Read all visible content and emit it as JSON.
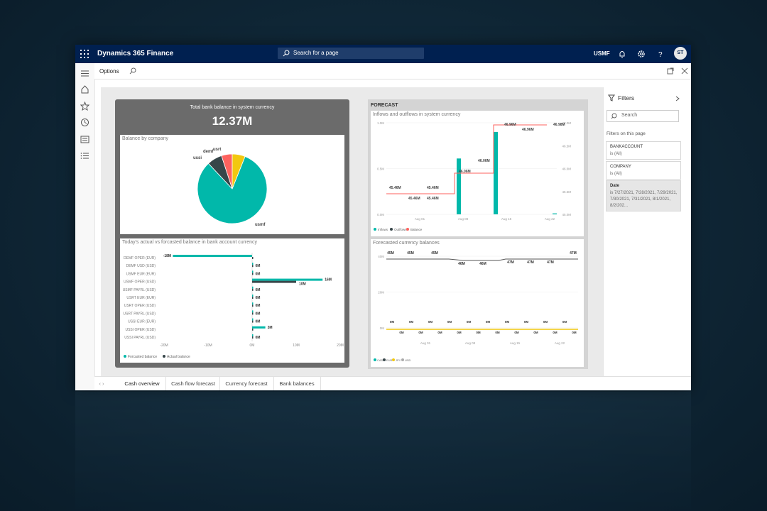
{
  "topbar": {
    "app_title": "Dynamics 365 Finance",
    "search_placeholder": "Search for a page",
    "company": "USMF",
    "user_initials": "ST"
  },
  "command": {
    "options_label": "Options"
  },
  "kpi": {
    "title": "Total bank balance in system currency",
    "value": "12.37M"
  },
  "balance_by_company": {
    "title": "Balance by company",
    "labels": [
      "demf",
      "usrt",
      "ussi",
      "usmf"
    ]
  },
  "bank_account_chart": {
    "title": "Today's actual vs forcasted balance in bank account currency",
    "legend": [
      "Forcasted balance",
      "Actual balance"
    ]
  },
  "forecast": {
    "title": "FORECAST",
    "inflows_title": "Inflows and outflows in system currency",
    "inflows_legend": [
      "Inflows",
      "Outflows",
      "Balance"
    ],
    "currency_title": "Forecasted currency balances",
    "currency_legend": [
      "CAD",
      "EUR",
      "JPY",
      "USD"
    ]
  },
  "filters": {
    "title": "Filters",
    "search_placeholder": "Search",
    "subtitle": "Filters on this page",
    "items": [
      {
        "name": "BANKACCOUNT",
        "value": "is (All)"
      },
      {
        "name": "COMPANY",
        "value": "is (All)"
      },
      {
        "name": "Date",
        "value": "is 7/27/2021, 7/28/2021, 7/29/2021, 7/30/2021, 7/31/2021, 8/1/2021, 8/2/202..."
      }
    ]
  },
  "tabs": [
    {
      "label": "Cash overview"
    },
    {
      "label": "Cash flow forecast"
    },
    {
      "label": "Currency forecast"
    },
    {
      "label": "Bank balances"
    }
  ],
  "chart_data": [
    {
      "type": "pie",
      "title": "Balance by company",
      "categories": [
        "usmf",
        "ussi",
        "demf",
        "usrt"
      ],
      "values": [
        82,
        7,
        5,
        6
      ],
      "colors": [
        "#01b8aa",
        "#374649",
        "#fd625e",
        "#f2c80f"
      ]
    },
    {
      "type": "bar",
      "title": "Today's actual vs forcasted balance in bank account currency",
      "categories": [
        "DEMF OPER (EUR)",
        "DEMF USD (USD)",
        "USMF EUR (EUR)",
        "USMF OPER (USD)",
        "USMF PAYRL (USD)",
        "USRT EUR (EUR)",
        "USRT OPER (USD)",
        "USRT PAYRL (USD)",
        "USSI EUR (EUR)",
        "USSI OPER (USD)",
        "USSI PAYRL (USD)"
      ],
      "series": [
        {
          "name": "Forcasted balance",
          "values": [
            -18,
            0,
            0,
            16,
            0,
            0,
            0,
            0,
            0,
            3,
            0
          ]
        },
        {
          "name": "Actual balance",
          "values": [
            0,
            0,
            0,
            10,
            0,
            0,
            0,
            0,
            0,
            0,
            0
          ]
        }
      ],
      "data_labels": [
        "-18M",
        "0M",
        "0M",
        "16M",
        "10M",
        "0M",
        "0M",
        "0M",
        "0M",
        "0M",
        "3M",
        "0M"
      ],
      "xticks": [
        "-20M",
        "-10M",
        "0M",
        "10M",
        "20M"
      ],
      "xlim": [
        -20,
        20
      ]
    },
    {
      "type": "bar",
      "title": "Inflows and outflows in system currency",
      "xticks": [
        "Aug 01",
        "Aug 08",
        "Aug 15",
        "Aug 22"
      ],
      "yticks_left": [
        "0.0M",
        "0.5M",
        "1.0M"
      ],
      "yticks_right": [
        "45.0M",
        "45.5M",
        "46.0M",
        "46.5M",
        "47.0M"
      ],
      "balance_labels": [
        "45.46M",
        "45.46M",
        "45.46M",
        "45.46M",
        "46.06M",
        "46.06M",
        "46.96M",
        "46.96M",
        "46.98M"
      ]
    },
    {
      "type": "line",
      "title": "Forecasted currency balances",
      "xticks": [
        "Aug 01",
        "Aug 08",
        "Aug 15",
        "Aug 22"
      ],
      "yticks": [
        "0M",
        "20M",
        "40M"
      ],
      "series": [
        {
          "name": "USD",
          "labels": [
            "45M",
            "45M",
            "45M",
            "46M",
            "46M",
            "47M",
            "47M",
            "47M",
            "47M"
          ]
        },
        {
          "name": "CAD",
          "labels": [
            "0M"
          ]
        }
      ]
    }
  ]
}
